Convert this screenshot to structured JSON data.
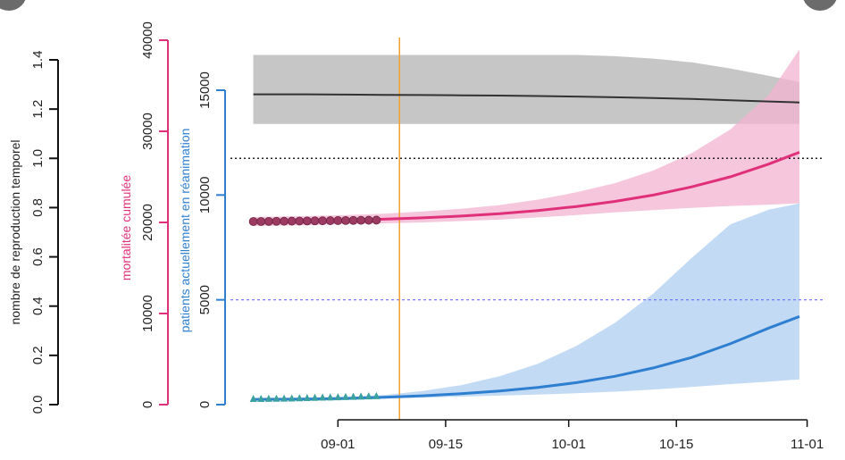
{
  "chart_data": {
    "type": "line",
    "axes": {
      "r": {
        "label": "nombre de reproduction temporel",
        "ticks": [
          "0.0",
          "0.2",
          "0.4",
          "0.6",
          "0.8",
          "1.0",
          "1.2",
          "1.4"
        ],
        "range": [
          0,
          1.4
        ],
        "color": "#000000"
      },
      "mortality": {
        "label": "mortalitée cumulée",
        "ticks": [
          "0",
          "10000",
          "20000",
          "30000",
          "40000"
        ],
        "range": [
          0,
          40000
        ],
        "color": "#e0307a"
      },
      "icu": {
        "label": "patients actuellement en réanimation",
        "ticks": [
          "0",
          "5000",
          "10000",
          "15000"
        ],
        "range": [
          0,
          15000
        ],
        "color": "#2f7fd0"
      },
      "x": {
        "ticks": [
          "09-01",
          "09-15",
          "10-01",
          "10-15",
          "11-01"
        ],
        "tick_days": [
          0,
          14,
          30,
          44,
          61
        ],
        "range_days": [
          -12,
          60
        ]
      }
    },
    "vline_day": 8,
    "vline_color": "#f0a030",
    "hline_r": 1.0,
    "hline_icu": 5000,
    "x_days": [
      -11,
      -4,
      1,
      6,
      11,
      16,
      21,
      26,
      31,
      36,
      41,
      46,
      51,
      56,
      60
    ],
    "series": [
      {
        "key": "r",
        "axis": "r",
        "color": "#333333",
        "band_color": "#c6c6c6",
        "values": [
          1.26,
          1.26,
          1.259,
          1.258,
          1.257,
          1.256,
          1.255,
          1.253,
          1.251,
          1.248,
          1.245,
          1.241,
          1.236,
          1.231,
          1.227
        ],
        "upper": [
          1.42,
          1.42,
          1.42,
          1.42,
          1.42,
          1.42,
          1.42,
          1.42,
          1.42,
          1.415,
          1.405,
          1.39,
          1.365,
          1.335,
          1.31
        ],
        "lower": [
          1.14,
          1.14,
          1.14,
          1.14,
          1.14,
          1.14,
          1.14,
          1.14,
          1.14,
          1.14,
          1.14,
          1.14,
          1.14,
          1.14,
          1.14
        ]
      },
      {
        "key": "mortality",
        "axis": "mortality",
        "color": "#e0307a",
        "band_color": "#f2b3d0",
        "values": [
          20200,
          20200,
          20250,
          20350,
          20500,
          20700,
          20950,
          21300,
          21750,
          22300,
          23000,
          23900,
          25000,
          26400,
          27700
        ],
        "upper": [
          20600,
          20700,
          20800,
          20950,
          21200,
          21500,
          21900,
          22500,
          23300,
          24300,
          25700,
          27600,
          30200,
          34000,
          39000
        ],
        "lower": [
          19600,
          19700,
          19800,
          19900,
          20000,
          20150,
          20300,
          20550,
          20800,
          21100,
          21350,
          21600,
          21800,
          21950,
          22100
        ]
      },
      {
        "key": "icu",
        "axis": "icu",
        "color": "#2f7fd0",
        "band_color": "#b9d4f2",
        "values": [
          250,
          270,
          300,
          350,
          420,
          520,
          650,
          820,
          1050,
          1350,
          1750,
          2250,
          2900,
          3650,
          4200
        ],
        "upper": [
          300,
          320,
          360,
          460,
          650,
          930,
          1350,
          1950,
          2800,
          3900,
          5300,
          7000,
          8600,
          9300,
          9600
        ],
        "lower": [
          200,
          220,
          250,
          290,
          330,
          380,
          430,
          480,
          540,
          620,
          720,
          840,
          980,
          1100,
          1200
        ]
      }
    ],
    "observed": [
      {
        "axis": "mortality",
        "marker": "circle",
        "color": "#9c3a62",
        "x_days": [
          -11,
          -10,
          -9,
          -8,
          -7,
          -6,
          -5,
          -4,
          -3,
          -2,
          -1,
          0,
          1,
          2,
          3,
          4,
          5
        ],
        "values": [
          20100,
          20100,
          20110,
          20120,
          20130,
          20140,
          20150,
          20160,
          20170,
          20180,
          20190,
          20200,
          20210,
          20220,
          20230,
          20240,
          20250
        ]
      },
      {
        "axis": "icu",
        "marker": "triangle",
        "color": "#3aa0a0",
        "x_days": [
          -11,
          -10,
          -9,
          -8,
          -7,
          -6,
          -5,
          -4,
          -3,
          -2,
          -1,
          0,
          1,
          2,
          3,
          4,
          5
        ],
        "values": [
          300,
          300,
          305,
          310,
          315,
          320,
          330,
          340,
          350,
          360,
          370,
          380,
          390,
          400,
          410,
          420,
          430
        ]
      }
    ]
  }
}
